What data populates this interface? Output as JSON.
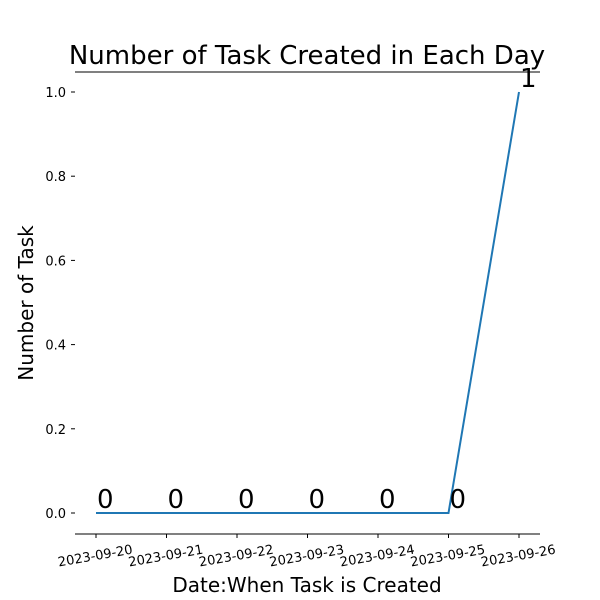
{
  "chart_data": {
    "type": "line",
    "title": "Number of Task Created in Each Day",
    "xlabel": "Date:When Task is Created",
    "ylabel": "Number of Task",
    "categories": [
      "2023-09-20",
      "2023-09-21",
      "2023-09-22",
      "2023-09-23",
      "2023-09-24",
      "2023-09-25",
      "2023-09-26"
    ],
    "values": [
      0,
      0,
      0,
      0,
      0,
      0,
      1
    ],
    "data_labels": [
      "0",
      "0",
      "0",
      "0",
      "0",
      "0",
      "1"
    ],
    "yticks": [
      0.0,
      0.2,
      0.4,
      0.6,
      0.8,
      1.0
    ],
    "ytick_labels": [
      "0.0",
      "0.2",
      "0.4",
      "0.6",
      "0.8",
      "1.0"
    ],
    "ylim": [
      -0.05,
      1.05
    ],
    "grid": false,
    "line_color": "#1f77b4"
  }
}
